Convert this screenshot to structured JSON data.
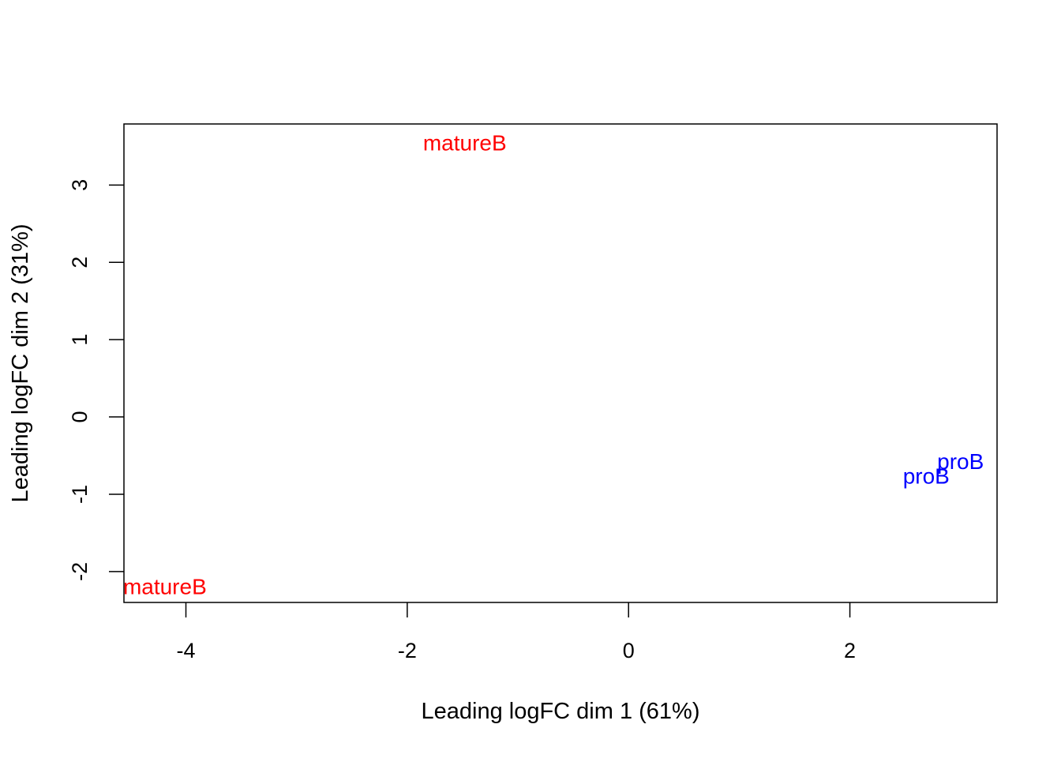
{
  "chart_data": {
    "type": "scatter",
    "title": "",
    "xlabel": "Leading logFC dim 1 (61%)",
    "ylabel": "Leading logFC dim 2 (31%)",
    "xlim": [
      -4.56,
      3.33
    ],
    "ylim": [
      -2.4,
      3.79
    ],
    "xticks": [
      -4,
      -2,
      0,
      2
    ],
    "yticks": [
      -2,
      -1,
      0,
      1,
      2,
      3
    ],
    "xtick_labels": [
      "-4",
      "-2",
      "0",
      "2"
    ],
    "ytick_labels": [
      "-2",
      "-1",
      "0",
      "1",
      "2",
      "3"
    ],
    "grid": false,
    "points": [
      {
        "label": "matureB",
        "x": -1.48,
        "y": 3.55,
        "color": "#ff0000"
      },
      {
        "label": "matureB",
        "x": -4.19,
        "y": -2.19,
        "color": "#ff0000"
      },
      {
        "label": "proB",
        "x": 3.0,
        "y": -0.57,
        "color": "#0000ff"
      },
      {
        "label": "proB",
        "x": 2.69,
        "y": -0.76,
        "color": "#0000ff"
      }
    ]
  }
}
